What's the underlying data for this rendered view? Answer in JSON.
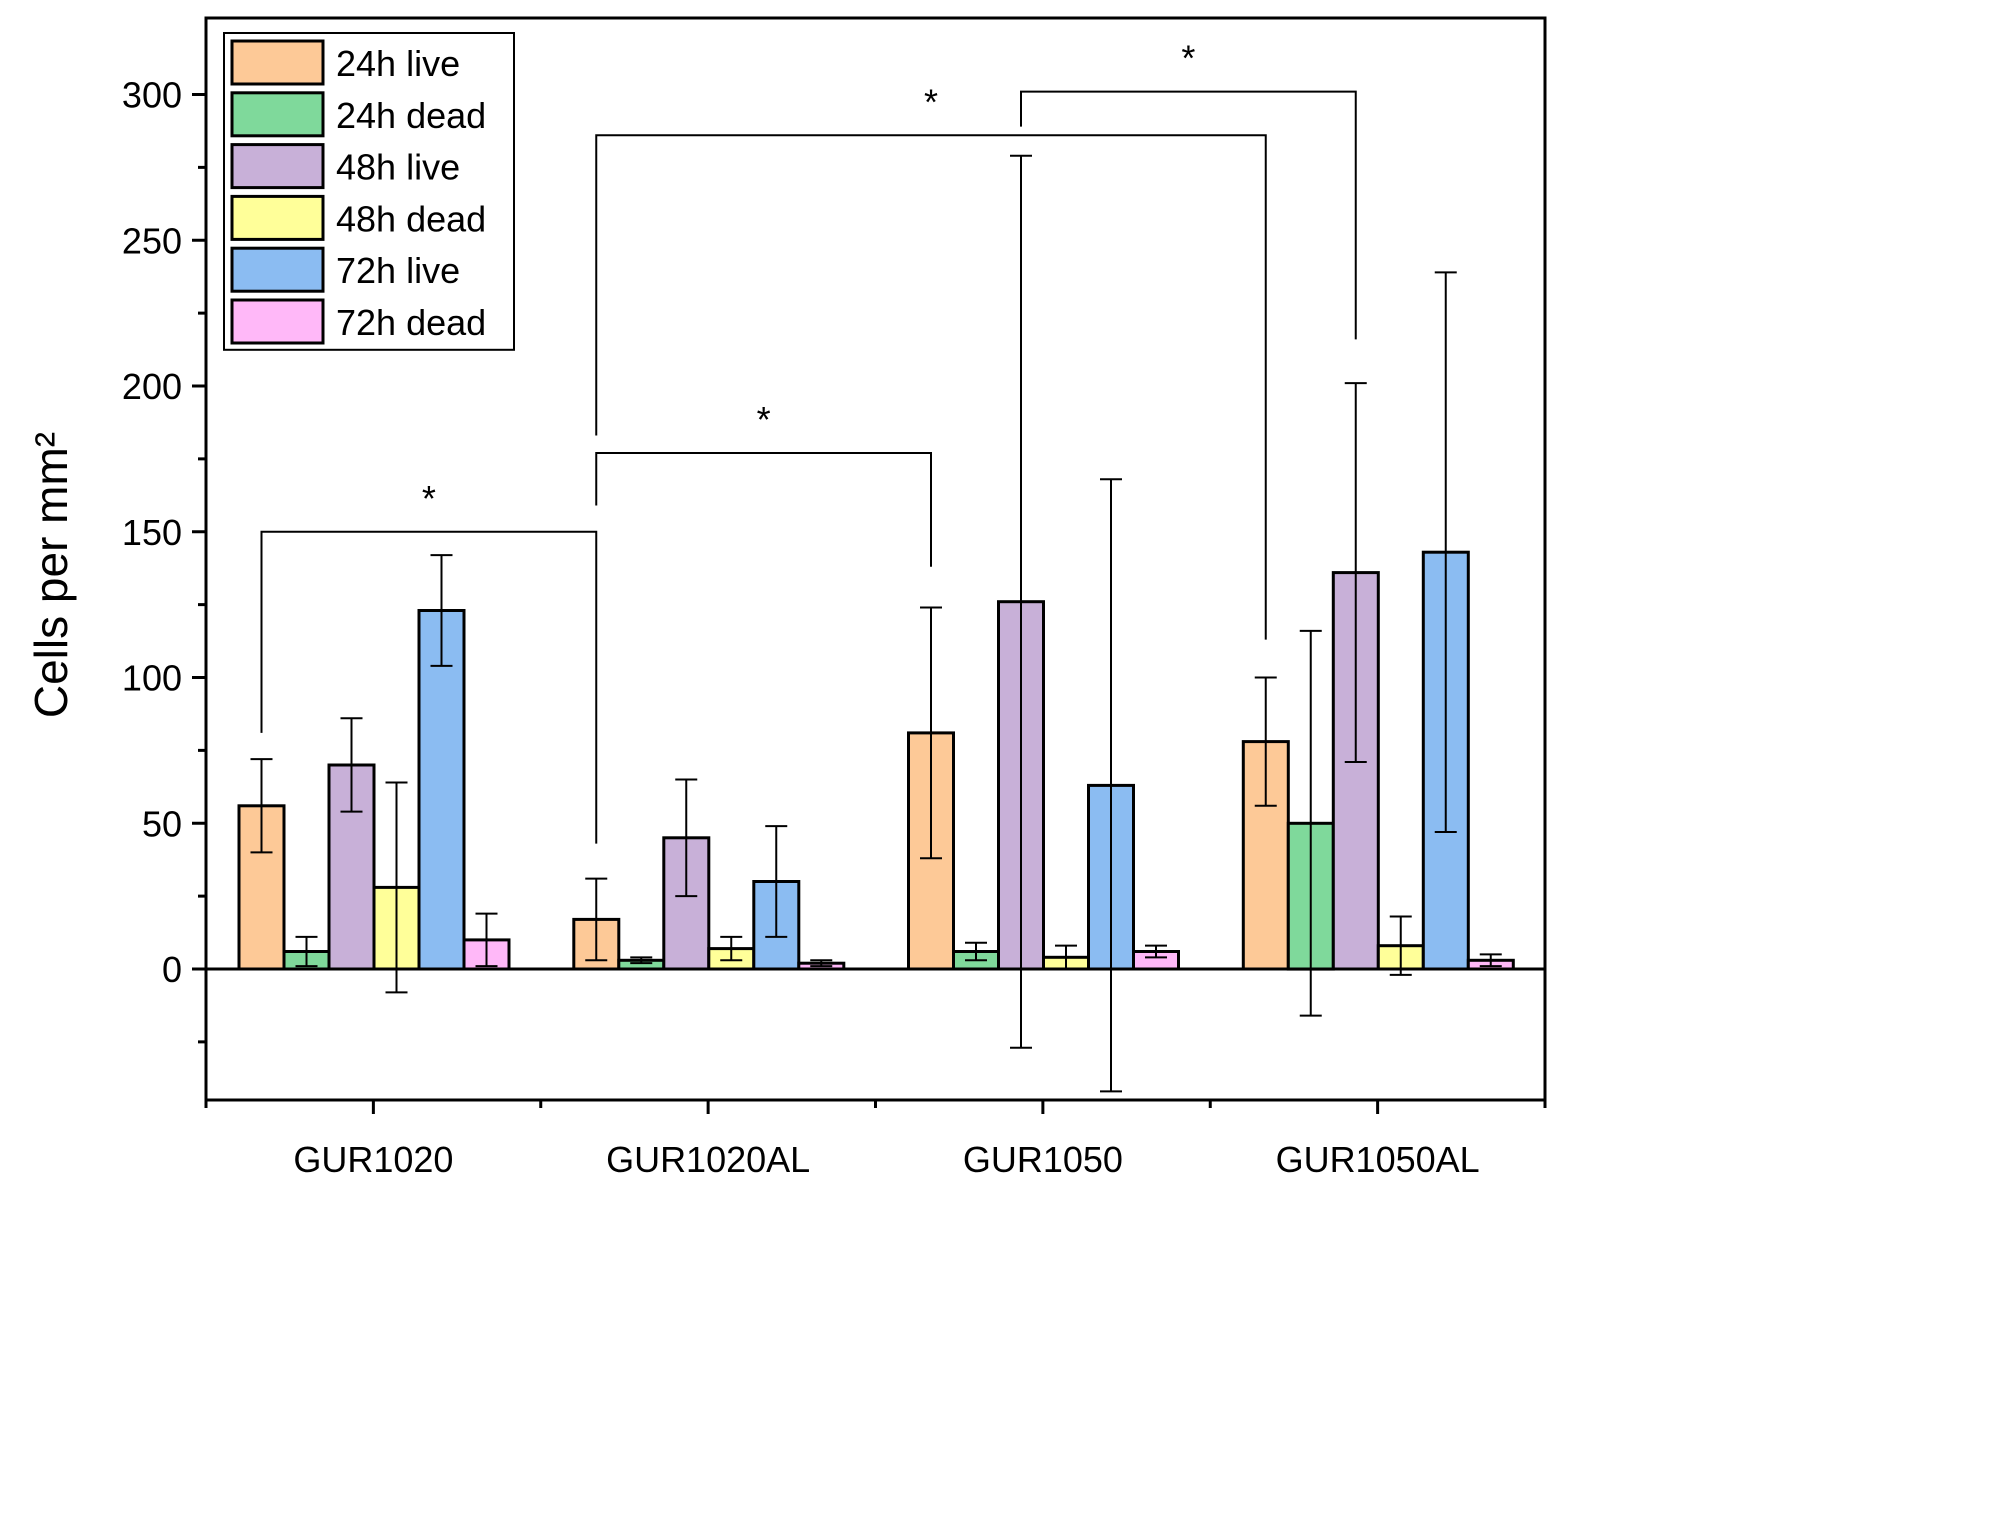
{
  "chart_data": {
    "type": "bar",
    "title": "",
    "xlabel": "",
    "ylabel": "Cells per mm²",
    "ylim": [
      -45,
      323
    ],
    "yticks": [
      0,
      50,
      100,
      150,
      200,
      250,
      300
    ],
    "categories": [
      "GUR1020",
      "GUR1020AL",
      "GUR1050",
      "GUR1050AL"
    ],
    "legend_position": "top-left",
    "series": [
      {
        "name": "24h live",
        "color": "#FDC997",
        "values": [
          56,
          17,
          81,
          78
        ],
        "errors": [
          16,
          14,
          43,
          22
        ]
      },
      {
        "name": "24h dead",
        "color": "#7FD99B",
        "values": [
          6,
          3,
          6,
          50
        ],
        "errors": [
          5,
          1,
          3,
          66
        ]
      },
      {
        "name": "48h live",
        "color": "#C8B0D8",
        "values": [
          70,
          45,
          126,
          136
        ],
        "errors": [
          16,
          20,
          153,
          65
        ]
      },
      {
        "name": "48h dead",
        "color": "#FFFF99",
        "values": [
          28,
          7,
          4,
          8
        ],
        "errors": [
          36,
          4,
          4,
          10
        ]
      },
      {
        "name": "72h live",
        "color": "#8BBCF2",
        "values": [
          123,
          30,
          63,
          143
        ],
        "errors": [
          19,
          19,
          105,
          96
        ]
      },
      {
        "name": "72h dead",
        "color": "#FFB8F8",
        "values": [
          10,
          2,
          6,
          3
        ],
        "errors": [
          9,
          1,
          2,
          2
        ]
      }
    ],
    "significance": [
      {
        "label": "*",
        "from": {
          "category": 0,
          "series": 0
        },
        "to": {
          "category": 1,
          "series": 0
        },
        "level": 150,
        "left_end": 81,
        "right_end": 43
      },
      {
        "label": "*",
        "from": {
          "category": 1,
          "series": 0
        },
        "to": {
          "category": 2,
          "series": 0
        },
        "level": 177,
        "left_end": 159,
        "right_end": 138
      },
      {
        "label": "*",
        "from": {
          "category": 1,
          "series": 0
        },
        "to": {
          "category": 3,
          "series": 0
        },
        "level": 286,
        "left_end": 183,
        "right_end": 113
      },
      {
        "label": "*",
        "from": {
          "category": 2,
          "series": 2
        },
        "to": {
          "category": 3,
          "series": 2
        },
        "level": 301,
        "left_end": 289,
        "right_end": 216
      }
    ]
  }
}
